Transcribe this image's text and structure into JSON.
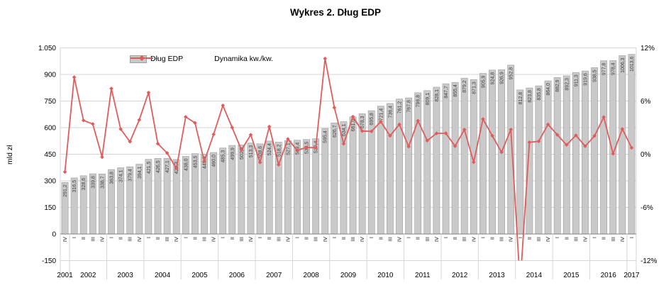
{
  "title": "Wykres 2. Dług EDP",
  "y_left": {
    "title": "mld zł",
    "tick_labels": [
      "1.050",
      "900",
      "750",
      "600",
      "450",
      "300",
      "150",
      "0",
      "-150"
    ],
    "tick_values": [
      1050,
      900,
      750,
      600,
      450,
      300,
      150,
      0,
      -150
    ],
    "min": -150,
    "max": 1050
  },
  "y_right": {
    "tick_labels": [
      "12%",
      "6%",
      "0%",
      "-6%",
      "-12%"
    ],
    "tick_values": [
      12,
      6,
      0,
      -6,
      -12
    ],
    "min": -12,
    "max": 12
  },
  "legend": [
    {
      "label": "Dług EDP",
      "series": "bar"
    },
    {
      "label": "Dynamika kw./kw.",
      "series": "line"
    }
  ],
  "colors": {
    "bar_fill": "#c9c9c9",
    "bar_stroke": "#9e9e9e",
    "line": "#e05c5c",
    "grid": "#d6d6d6",
    "axis": "#808080",
    "value_label": "#404040"
  },
  "chart_data": {
    "type": "bar+line combo",
    "title": "Wykres 2. Dług EDP",
    "left_axis_label": "mld zł",
    "left_axis_range": [
      -150,
      1050
    ],
    "right_axis_range": [
      -12,
      12
    ],
    "legend_position": "top-inside",
    "grid": true,
    "quarters": [
      "IV",
      "I",
      "II",
      "III",
      "IV",
      "I",
      "II",
      "III",
      "IV",
      "I",
      "II",
      "III",
      "IV",
      "I",
      "II",
      "III",
      "IV",
      "I",
      "II",
      "III",
      "IV",
      "I",
      "II",
      "III",
      "IV",
      "I",
      "II",
      "III",
      "IV",
      "I",
      "II",
      "III",
      "IV",
      "I",
      "II",
      "III",
      "IV",
      "I",
      "II",
      "III",
      "IV",
      "I",
      "II",
      "III",
      "IV",
      "I",
      "II",
      "III",
      "IV",
      "I",
      "II",
      "III",
      "IV",
      "I",
      "II",
      "III",
      "IV",
      "I",
      "II",
      "III",
      "IV",
      "I"
    ],
    "years": [
      {
        "label": "2001",
        "quarters": 1
      },
      {
        "label": "2002",
        "quarters": 4
      },
      {
        "label": "2003",
        "quarters": 4
      },
      {
        "label": "2004",
        "quarters": 4
      },
      {
        "label": "2005",
        "quarters": 4
      },
      {
        "label": "2006",
        "quarters": 4
      },
      {
        "label": "2007",
        "quarters": 4
      },
      {
        "label": "2008",
        "quarters": 4
      },
      {
        "label": "2009",
        "quarters": 4
      },
      {
        "label": "2010",
        "quarters": 4
      },
      {
        "label": "2011",
        "quarters": 4
      },
      {
        "label": "2012",
        "quarters": 4
      },
      {
        "label": "2013",
        "quarters": 4
      },
      {
        "label": "2014",
        "quarters": 4
      },
      {
        "label": "2015",
        "quarters": 4
      },
      {
        "label": "2016",
        "quarters": 4
      },
      {
        "label": "2017",
        "quarters": 1
      }
    ],
    "series": [
      {
        "name": "Dług EDP",
        "type": "bar",
        "axis": "left",
        "unit": "mld zł",
        "values": [
          291.2,
          316.5,
          328.6,
          339.8,
          338.7,
          363.8,
          374.1,
          379.4,
          394.1,
          421.5,
          426.5,
          427.1,
          420.3,
          438.0,
          453.5,
          449.9,
          460.0,
          485.3,
          499.9,
          502.3,
          513.3,
          508.6,
          524.4,
          518.2,
          527.1,
          529.4,
          533.5,
          537.4,
          595.4,
          626.7,
          634.1,
          661.0,
          678.3,
          695.8,
          721.4,
          736.4,
          761.2,
          767.8,
          796.8,
          809.1,
          828.1,
          847.7,
          855.4,
          879.2,
          871.3,
          905.9,
          924.8,
          926.9,
          952.8,
          812.8,
          823.8,
          835.8,
          864.0,
          882.9,
          892.3,
          911.3,
          919.6,
          938.5,
          977.8,
          978.4,
          1006.3,
          1013.6
        ]
      },
      {
        "name": "Dynamika kw./kw.",
        "type": "line",
        "axis": "right",
        "unit": "%",
        "values": [
          -2.0,
          8.69,
          3.82,
          3.41,
          -0.32,
          7.41,
          2.83,
          1.42,
          3.87,
          6.95,
          1.19,
          0.14,
          -1.59,
          4.21,
          3.54,
          -0.79,
          2.24,
          5.5,
          3.01,
          0.48,
          2.19,
          -0.92,
          3.11,
          -1.18,
          1.72,
          0.44,
          0.77,
          0.73,
          10.79,
          5.26,
          1.18,
          4.24,
          2.62,
          2.58,
          3.68,
          2.08,
          3.37,
          0.87,
          3.78,
          1.54,
          2.35,
          2.37,
          0.91,
          2.78,
          -0.9,
          3.97,
          2.09,
          0.23,
          2.79,
          -14.69,
          1.35,
          1.46,
          3.37,
          2.19,
          1.06,
          2.13,
          0.91,
          2.06,
          4.19,
          0.06,
          2.85,
          0.73
        ]
      }
    ]
  }
}
